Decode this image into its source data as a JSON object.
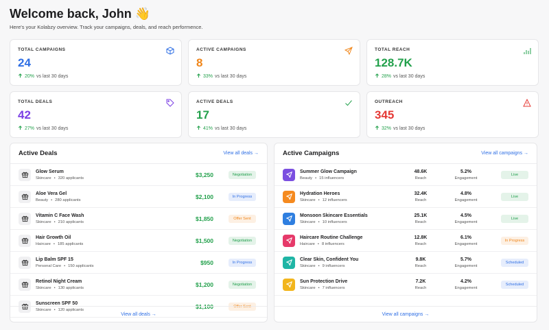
{
  "header": {
    "title": "Welcome back, John 👋",
    "subtitle": "Here's your Kolabzy overview. Track your campaigns, deals, and reach performence."
  },
  "stats": [
    {
      "label": "TOTAL CAMPAIGNS",
      "value": "24",
      "change": "20%",
      "period": "vs last 30 days",
      "color": "#2f6fe4"
    },
    {
      "label": "ACTIVE CAMPAIGNS",
      "value": "8",
      "change": "33%",
      "period": "vs last 30 days",
      "color": "#f0861a"
    },
    {
      "label": "TOTAL REACH",
      "value": "128.7K",
      "change": "28%",
      "period": "vs last 30 days",
      "color": "#22a04b"
    },
    {
      "label": "TOTAL DEALS",
      "value": "42",
      "change": "27%",
      "period": "vs last 30 days",
      "color": "#7b3fe4"
    },
    {
      "label": "ACTIVE DEALS",
      "value": "17",
      "change": "41%",
      "period": "vs last 30 days",
      "color": "#22a04b"
    },
    {
      "label": "OUTREACH",
      "value": "345",
      "change": "32%",
      "period": "vs last 30 days",
      "color": "#e53935"
    }
  ],
  "deals": {
    "title": "Active Deals",
    "link": "View all deals →",
    "footer": "View all deals →",
    "rows": [
      {
        "name": "Glow Serum",
        "category": "Skincare",
        "detail": "320 applicants",
        "amount": "$3,250",
        "status": "Negotiation",
        "status_color": "#1e9e4a"
      },
      {
        "name": "Aloe Vera Gel",
        "category": "Beauty",
        "detail": "280 applicants",
        "amount": "$2,100",
        "status": "In Progress",
        "status_color": "#2f6fe4"
      },
      {
        "name": "Vitamin C Face Wash",
        "category": "Skincare",
        "detail": "210 applicants",
        "amount": "$1,850",
        "status": "Offer Sent",
        "status_color": "#f0861a"
      },
      {
        "name": "Hair Growth Oil",
        "category": "Haircare",
        "detail": "185 applicants",
        "amount": "$1,500",
        "status": "Negotiation",
        "status_color": "#1e9e4a"
      },
      {
        "name": "Lip Balm SPF 15",
        "category": "Personal Care",
        "detail": "150 applicants",
        "amount": "$950",
        "status": "In Progress",
        "status_color": "#2f6fe4"
      },
      {
        "name": "Retinol Night Cream",
        "category": "Skincare",
        "detail": "130 applicants",
        "amount": "$1,200",
        "status": "Negotiation",
        "status_color": "#1e9e4a"
      },
      {
        "name": "Sunscreen SPF 50",
        "category": "Skincare",
        "detail": "120 applicants",
        "amount": "$1,100",
        "status": "Offer Sent",
        "status_color": "#f0861a"
      }
    ]
  },
  "campaigns": {
    "title": "Active Campaigns",
    "link": "View all campaigns →",
    "footer": "View all campaigns →",
    "rows": [
      {
        "name": "Summer Glow Campaign",
        "category": "Beauty",
        "detail": "15 influencers",
        "reach": "48.6K",
        "reach_label": "Reach",
        "engagement": "5.2%",
        "engagement_label": "Engagement",
        "status": "Live",
        "status_color": "#1e9e4a",
        "icon_color": "#7b4fe0"
      },
      {
        "name": "Hydration Heroes",
        "category": "Skincare",
        "detail": "12 influencers",
        "reach": "32.4K",
        "reach_label": "Reach",
        "engagement": "4.8%",
        "engagement_label": "Engagement",
        "status": "Live",
        "status_color": "#1e9e4a",
        "icon_color": "#f58a1f"
      },
      {
        "name": "Monsoon Skincare Essentials",
        "category": "Skincare",
        "detail": "10 influencers",
        "reach": "25.1K",
        "reach_label": "Reach",
        "engagement": "4.5%",
        "engagement_label": "Engagement",
        "status": "Live",
        "status_color": "#1e9e4a",
        "icon_color": "#2f7fe0"
      },
      {
        "name": "Haircare Routine Challenge",
        "category": "Haircare",
        "detail": "8 influencers",
        "reach": "12.8K",
        "reach_label": "Reach",
        "engagement": "6.1%",
        "engagement_label": "Engagement",
        "status": "In Progress",
        "status_color": "#f0861a",
        "icon_color": "#e63a6a"
      },
      {
        "name": "Clear Skin, Confident You",
        "category": "Skincare",
        "detail": "9 influencers",
        "reach": "9.8K",
        "reach_label": "Reach",
        "engagement": "5.7%",
        "engagement_label": "Engagement",
        "status": "Scheduled",
        "status_color": "#2f6fe4",
        "icon_color": "#1fb5a5"
      },
      {
        "name": "Sun Protection Drive",
        "category": "Skincare",
        "detail": "7 influencers",
        "reach": "7.2K",
        "reach_label": "Reach",
        "engagement": "4.2%",
        "engagement_label": "Engagement",
        "status": "Scheduled",
        "status_color": "#2f6fe4",
        "icon_color": "#f2b51c"
      }
    ]
  }
}
